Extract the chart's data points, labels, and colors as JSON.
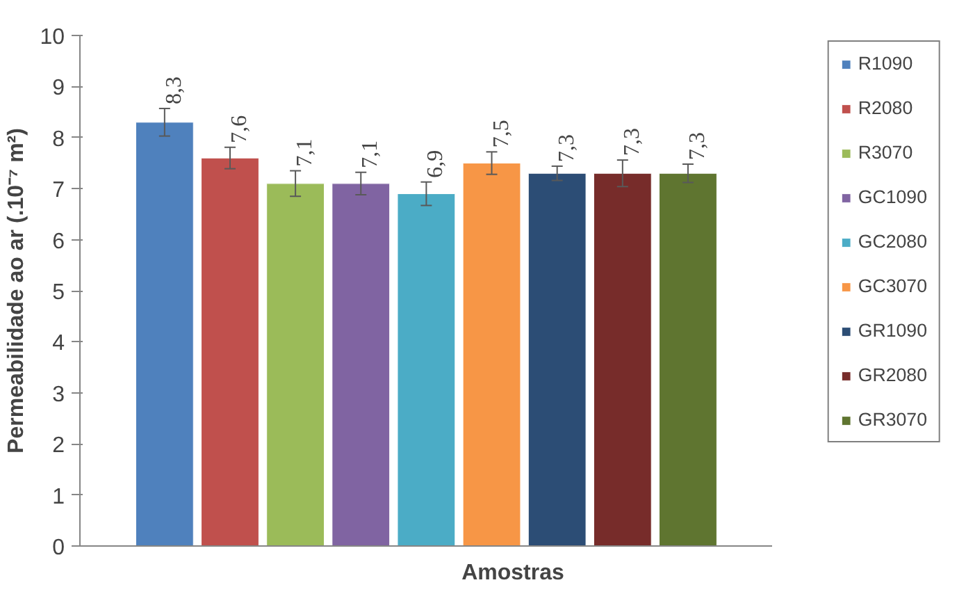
{
  "chart_data": {
    "type": "bar",
    "xlabel": "Amostras",
    "ylabel": "Permeabilidade ao ar (.10⁻⁷ m²)",
    "categories": [
      null
    ],
    "ylim": [
      0,
      10
    ],
    "yticks": [
      0,
      1,
      2,
      3,
      4,
      5,
      6,
      7,
      8,
      9,
      10
    ],
    "grid": false,
    "legend": "right",
    "tick_labels": "y",
    "series": [
      {
        "name": "R1090",
        "color": "#4f81bd",
        "values": [
          8.3
        ],
        "errors": [
          0.27
        ],
        "value_labels": [
          "8,3"
        ]
      },
      {
        "name": "R2080",
        "color": "#c0504d",
        "values": [
          7.6
        ],
        "errors": [
          0.21
        ],
        "value_labels": [
          "7,6"
        ]
      },
      {
        "name": "R3070",
        "color": "#9bbb59",
        "values": [
          7.1
        ],
        "errors": [
          0.25
        ],
        "value_labels": [
          "7,1"
        ]
      },
      {
        "name": "GC1090",
        "color": "#8064a2",
        "values": [
          7.1
        ],
        "errors": [
          0.22
        ],
        "value_labels": [
          "7,1"
        ]
      },
      {
        "name": "GC2080",
        "color": "#4bacc6",
        "values": [
          6.9
        ],
        "errors": [
          0.23
        ],
        "value_labels": [
          "6,9"
        ]
      },
      {
        "name": "GC3070",
        "color": "#f79646",
        "values": [
          7.5
        ],
        "errors": [
          0.22
        ],
        "value_labels": [
          "7,5"
        ]
      },
      {
        "name": "GR1090",
        "color": "#2c4d75",
        "values": [
          7.3
        ],
        "errors": [
          0.14
        ],
        "value_labels": [
          "7,3"
        ]
      },
      {
        "name": "GR2080",
        "color": "#772c2a",
        "values": [
          7.3
        ],
        "errors": [
          0.26
        ],
        "value_labels": [
          "7,3"
        ]
      },
      {
        "name": "GR3070",
        "color": "#5f7530",
        "values": [
          7.3
        ],
        "errors": [
          0.18
        ],
        "value_labels": [
          "7,3"
        ]
      }
    ]
  }
}
